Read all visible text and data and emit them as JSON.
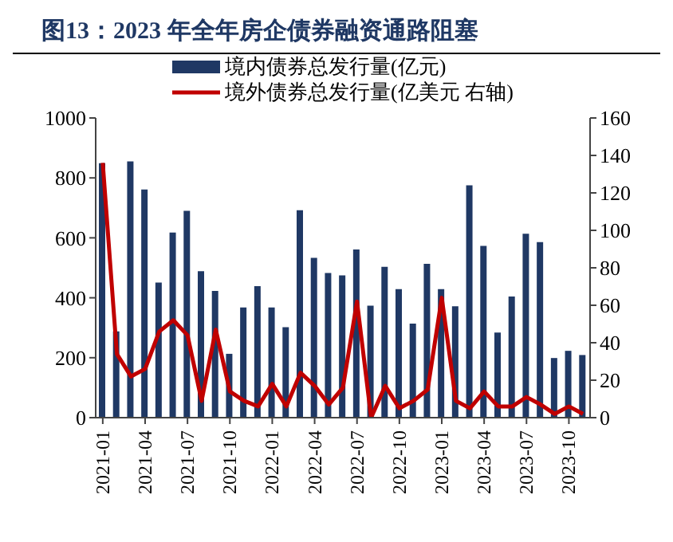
{
  "chart_data": {
    "type": "bar",
    "title": "图13：2023 年全年房企债券融资通路阻塞",
    "categories": [
      "2021-01",
      null,
      null,
      "2021-04",
      null,
      null,
      "2021-07",
      null,
      null,
      "2021-10",
      null,
      null,
      "2022-01",
      null,
      null,
      "2022-04",
      null,
      null,
      "2022-07",
      null,
      null,
      "2022-10",
      null,
      null,
      "2023-01",
      null,
      null,
      "2023-04",
      null,
      null,
      "2023-07",
      null,
      null,
      "2023-10",
      null
    ],
    "series": [
      {
        "name": "境内债券总发行量(亿元)",
        "color": "#1f3864",
        "values": [
          849,
          288,
          855,
          761,
          451,
          618,
          690,
          489,
          423,
          213,
          368,
          439,
          368,
          302,
          692,
          533,
          483,
          475,
          561,
          374,
          503,
          429,
          314,
          513,
          429,
          372,
          775,
          573,
          284,
          404,
          614,
          586,
          199,
          223,
          209
        ]
      },
      {
        "name": "境外债券总发行量(亿美元 右轴)",
        "type": "line",
        "axis": "y2",
        "color": "#c00000",
        "values": [
          136,
          34,
          22,
          26,
          46,
          52,
          44,
          9,
          47,
          14,
          9,
          6,
          18,
          6,
          24,
          17,
          7,
          16,
          62,
          0,
          17,
          5,
          9,
          15,
          64,
          9,
          5,
          14,
          6,
          6,
          11,
          7,
          2,
          6,
          2
        ]
      }
    ],
    "ylim": [
      0,
      1000
    ],
    "yticks": [
      0,
      200,
      400,
      600,
      800,
      1000
    ],
    "y2lim": [
      0,
      160
    ],
    "y2ticks": [
      0,
      20,
      40,
      60,
      80,
      100,
      120,
      140,
      160
    ],
    "legend": "top"
  }
}
